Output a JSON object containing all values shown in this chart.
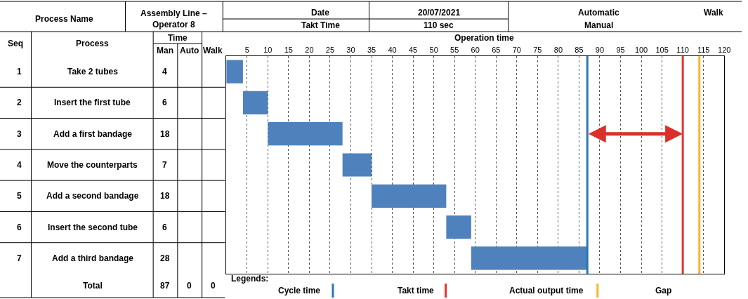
{
  "chart_data": {
    "type": "bar",
    "orientation": "horizontal",
    "categories": [
      "Take 2 tubes",
      "Insert the first tube",
      "Add a first bandage",
      "Move the counterparts",
      "Add a second bandage",
      "Insert the second tube",
      "Add a third bandage"
    ],
    "series": [
      {
        "color": "#4f81bd",
        "values": [
          4,
          6,
          18,
          7,
          18,
          6,
          28
        ],
        "base": [
          0,
          4,
          10,
          28,
          35,
          53,
          59
        ]
      }
    ],
    "data_labels": true,
    "legend": "bottom",
    "xlim": [
      0,
      120
    ],
    "xticks": [
      5,
      10,
      15,
      20,
      25,
      30,
      35,
      40,
      45,
      50,
      55,
      60,
      65,
      70,
      75,
      80,
      85,
      90,
      95,
      100,
      105,
      110,
      115,
      120
    ],
    "grid": "x",
    "ref_lines": [
      {
        "axis": "x",
        "value": 87,
        "label": "Cycle time",
        "color": "#2e75b6"
      },
      {
        "axis": "x",
        "value": 110,
        "label": "Takt time",
        "color": "#e8322e"
      },
      {
        "axis": "x",
        "value": 114,
        "label": "Actual output time",
        "color": "#f5b82e"
      }
    ],
    "annotations": [
      "Process Name",
      "Assembly Line – Operator 8",
      "Date",
      "20/07/2021",
      "Takt Time",
      "110 sec",
      "Seq",
      "Process",
      "Time",
      "Man",
      "Auto",
      "Walk",
      "Operation time",
      "1",
      "2",
      "3",
      "4",
      "5",
      "6",
      "7",
      "Total",
      "87",
      "0",
      "0",
      "Legends:",
      "Gap",
      "Automatic",
      "Walk",
      "Manual"
    ]
  }
}
